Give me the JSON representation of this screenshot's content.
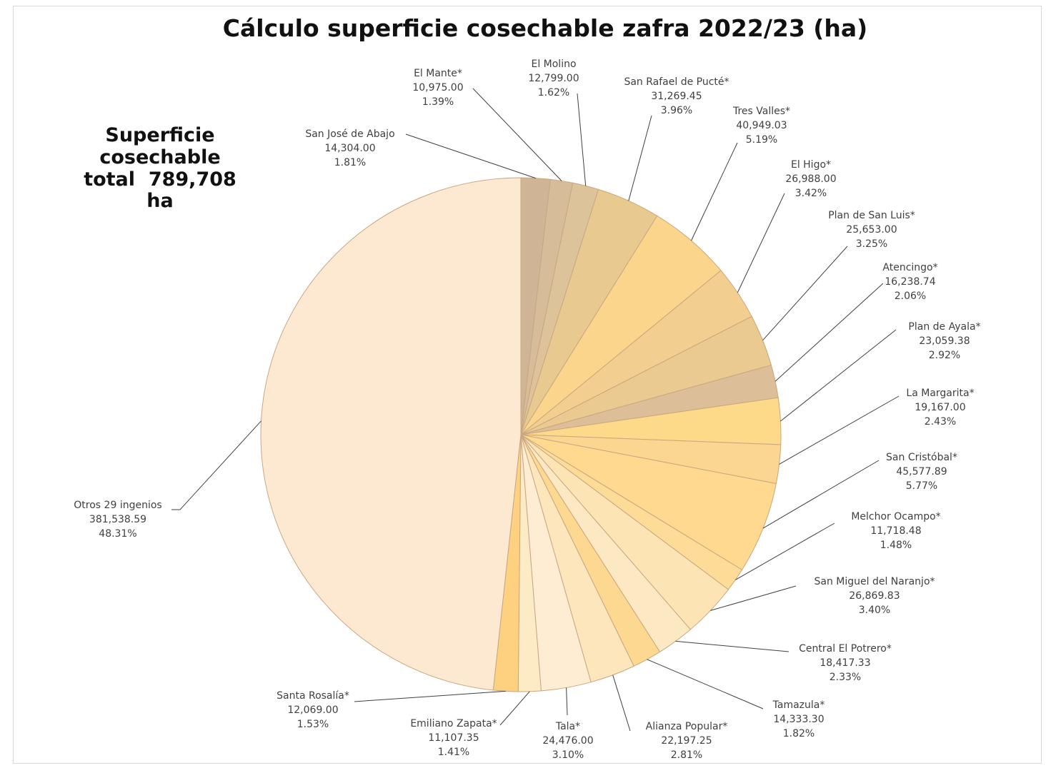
{
  "chart_data": {
    "type": "pie",
    "title": "Cálculo superficie cosechable zafra 2022/23 (ha)",
    "annotation": {
      "line1": "Superficie",
      "line2": "cosechable",
      "line3": "total  789,708",
      "line4": "ha"
    },
    "start_angle_deg": 0,
    "direction": "clockwise",
    "slices": [
      {
        "label": "San José de Abajo",
        "value": "14,304.00",
        "pct": "1.81%",
        "share": 1.81,
        "color": "#cfb596"
      },
      {
        "label": "El Mante*",
        "value": "10,975.00",
        "pct": "1.39%",
        "share": 1.39,
        "color": "#d6bc98"
      },
      {
        "label": "El Molino",
        "value": "12,799.00",
        "pct": "1.62%",
        "share": 1.62,
        "color": "#ddc39a"
      },
      {
        "label": "San Rafael de Pucté*",
        "value": "31,269.45",
        "pct": "3.96%",
        "share": 3.96,
        "color": "#e8c990"
      },
      {
        "label": "Tres Valles*",
        "value": "40,949.03",
        "pct": "5.19%",
        "share": 5.19,
        "color": "#fbd58c"
      },
      {
        "label": "El Higo*",
        "value": "26,988.00",
        "pct": "3.42%",
        "share": 3.42,
        "color": "#f2cf90"
      },
      {
        "label": "Plan de San Luis*",
        "value": "25,653.00",
        "pct": "3.25%",
        "share": 3.25,
        "color": "#ebca92"
      },
      {
        "label": "Atencingo*",
        "value": "16,238.74",
        "pct": "2.06%",
        "share": 2.06,
        "color": "#dcbf99"
      },
      {
        "label": "Plan de Ayala*",
        "value": "23,059.38",
        "pct": "2.92%",
        "share": 2.92,
        "color": "#fdd98a"
      },
      {
        "label": "La Margarita*",
        "value": "19,167.00",
        "pct": "2.43%",
        "share": 2.43,
        "color": "#fbd690"
      },
      {
        "label": "San Cristóbal*",
        "value": "45,577.89",
        "pct": "5.77%",
        "share": 5.77,
        "color": "#fed98f"
      },
      {
        "label": "Melchor Ocampo*",
        "value": "11,718.48",
        "pct": "1.48%",
        "share": 1.48,
        "color": "#fddc98"
      },
      {
        "label": "San Miguel del Naranjo*",
        "value": "26,869.83",
        "pct": "3.40%",
        "share": 3.4,
        "color": "#fde4b4"
      },
      {
        "label": "Central El Potrero*",
        "value": "18,417.33",
        "pct": "2.33%",
        "share": 2.33,
        "color": "#fde8c4"
      },
      {
        "label": "Tamazula*",
        "value": "14,333.30",
        "pct": "1.82%",
        "share": 1.82,
        "color": "#fdd890"
      },
      {
        "label": "Alianza Popular*",
        "value": "22,197.25",
        "pct": "2.81%",
        "share": 2.81,
        "color": "#fde6bc"
      },
      {
        "label": "Tala*",
        "value": "24,476.00",
        "pct": "3.10%",
        "share": 3.1,
        "color": "#feedd2"
      },
      {
        "label": "Emiliano Zapata*",
        "value": "11,107.35",
        "pct": "1.41%",
        "share": 1.41,
        "color": "#fdebc6"
      },
      {
        "label": "Santa Rosalía*",
        "value": "12,069.00",
        "pct": "1.53%",
        "share": 1.53,
        "color": "#fdd180"
      },
      {
        "label": "Otros 29 ingenios",
        "value": "381,538.59",
        "pct": "48.31%",
        "share": 48.31,
        "color": "#fde9d2"
      }
    ]
  }
}
